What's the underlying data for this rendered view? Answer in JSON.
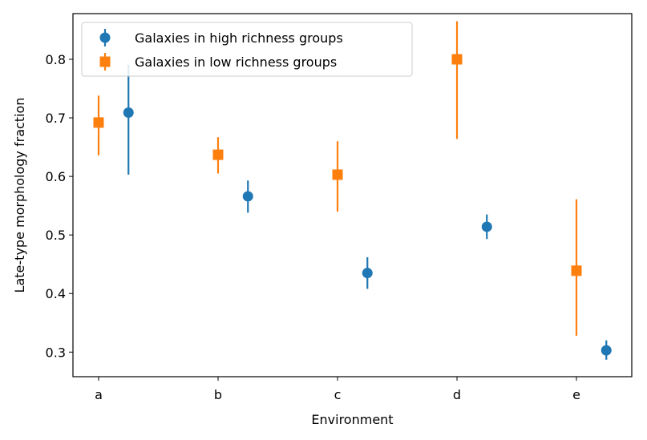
{
  "chart_data": {
    "type": "scatter",
    "xlabel": "Environment",
    "ylabel": "Late-type morphology fraction",
    "categories": [
      "a",
      "b",
      "c",
      "d",
      "e"
    ],
    "ylim": [
      0.258,
      0.878
    ],
    "yticks": [
      "0.3",
      "0.4",
      "0.5",
      "0.6",
      "0.7",
      "0.8"
    ],
    "grid": false,
    "legend": "top-left",
    "series": [
      {
        "name": "Galaxies in high richness groups",
        "marker": "circle",
        "color": "#1f77b4",
        "x_offset": 0.25,
        "values": [
          0.709,
          0.566,
          0.435,
          0.514,
          0.303
        ],
        "err_low": [
          0.603,
          0.538,
          0.408,
          0.493,
          0.287
        ],
        "err_high": [
          0.791,
          0.593,
          0.462,
          0.535,
          0.32
        ]
      },
      {
        "name": "Galaxies in low richness groups",
        "marker": "square",
        "color": "#ff7f0e",
        "x_offset": 0.0,
        "values": [
          0.692,
          0.637,
          0.603,
          0.8,
          0.439
        ],
        "err_low": [
          0.636,
          0.605,
          0.54,
          0.664,
          0.328
        ],
        "err_high": [
          0.738,
          0.667,
          0.66,
          0.865,
          0.561
        ]
      }
    ]
  }
}
